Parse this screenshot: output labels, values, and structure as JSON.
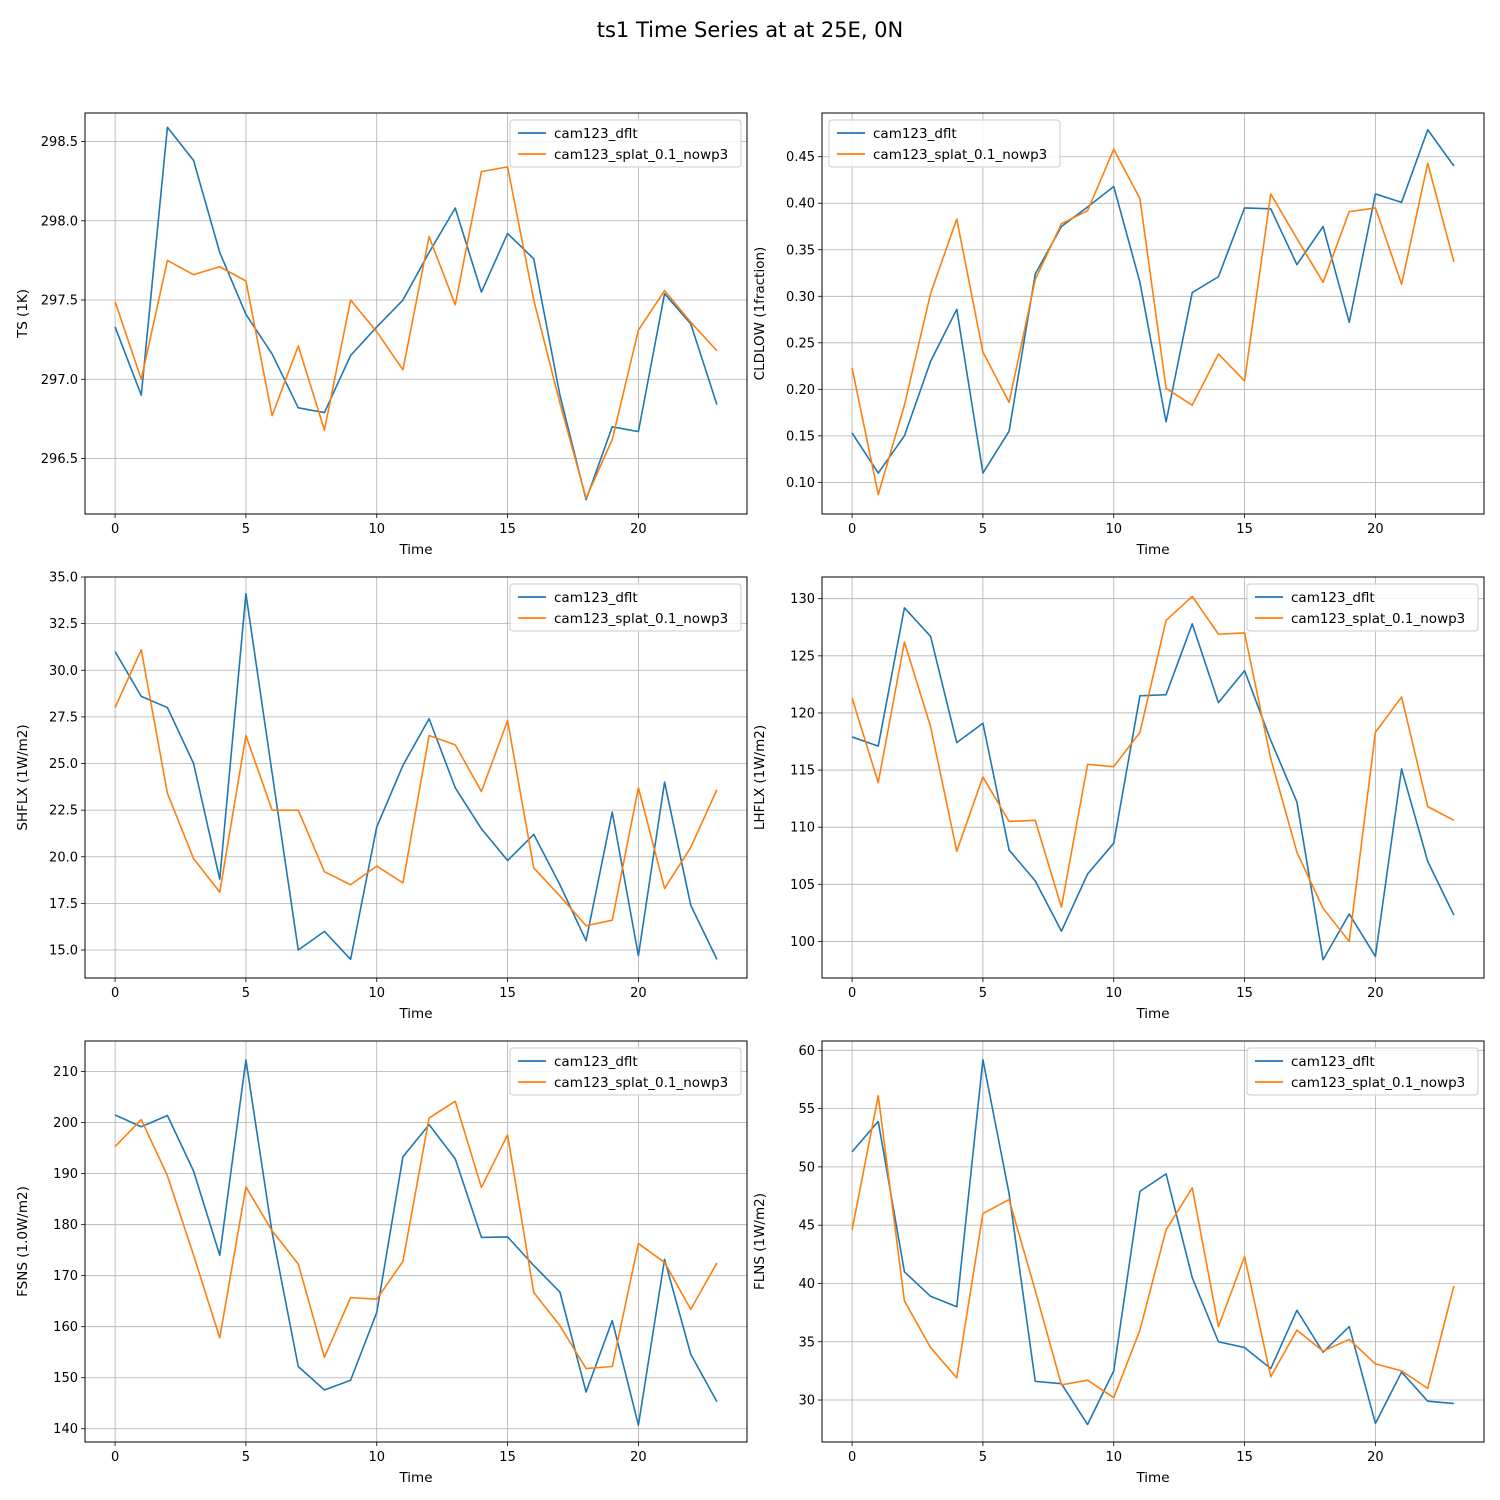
{
  "figure": {
    "title": "ts1 Time Series at at 25E, 0N"
  },
  "colors": {
    "cam123_dflt": "#1f77b4",
    "cam123_splat_0.1_nowp3": "#ff7f0e"
  },
  "chart_data": [
    {
      "type": "line",
      "id": "ts",
      "xlabel": "Time",
      "ylabel": "TS (1K)",
      "xlim": [
        -1.15,
        24.15
      ],
      "ylim": [
        296.15,
        298.68
      ],
      "xticks": [
        0,
        5,
        10,
        15,
        20
      ],
      "yticks": [
        296.5,
        297.0,
        297.5,
        298.0,
        298.5
      ],
      "ytick_labels": [
        "296.5",
        "297.0",
        "297.5",
        "298.0",
        "298.5"
      ],
      "grid": true,
      "legend": "top-right",
      "x": [
        0,
        1,
        2,
        3,
        4,
        5,
        6,
        7,
        8,
        9,
        10,
        11,
        12,
        13,
        14,
        15,
        16,
        17,
        18,
        19,
        20,
        21,
        22,
        23
      ],
      "series": [
        {
          "name": "cam123_dflt",
          "values": [
            297.33,
            296.9,
            298.59,
            298.38,
            297.8,
            297.41,
            297.16,
            296.82,
            296.79,
            297.15,
            297.33,
            297.5,
            297.8,
            298.08,
            297.55,
            297.92,
            297.76,
            296.9,
            296.24,
            296.7,
            296.67,
            297.54,
            297.35,
            296.84
          ]
        },
        {
          "name": "cam123_splat_0.1_nowp3",
          "values": [
            297.49,
            297.0,
            297.75,
            297.66,
            297.71,
            297.62,
            296.77,
            297.21,
            296.68,
            297.5,
            297.3,
            297.06,
            297.9,
            297.47,
            298.31,
            298.34,
            297.5,
            296.85,
            296.25,
            296.62,
            297.31,
            297.56,
            297.36,
            297.18
          ]
        }
      ]
    },
    {
      "type": "line",
      "id": "cldlow",
      "xlabel": "Time",
      "ylabel": "CLDLOW (1fraction)",
      "xlim": [
        -1.15,
        24.15
      ],
      "ylim": [
        0.066,
        0.497
      ],
      "xticks": [
        0,
        5,
        10,
        15,
        20
      ],
      "yticks": [
        0.1,
        0.15,
        0.2,
        0.25,
        0.3,
        0.35,
        0.4,
        0.45
      ],
      "ytick_labels": [
        "0.10",
        "0.15",
        "0.20",
        "0.25",
        "0.30",
        "0.35",
        "0.40",
        "0.45"
      ],
      "grid": true,
      "legend": "top-left",
      "x": [
        0,
        1,
        2,
        3,
        4,
        5,
        6,
        7,
        8,
        9,
        10,
        11,
        12,
        13,
        14,
        15,
        16,
        17,
        18,
        19,
        20,
        21,
        22,
        23
      ],
      "series": [
        {
          "name": "cam123_dflt",
          "values": [
            0.153,
            0.11,
            0.15,
            0.23,
            0.286,
            0.11,
            0.155,
            0.324,
            0.375,
            0.396,
            0.418,
            0.315,
            0.165,
            0.304,
            0.321,
            0.395,
            0.394,
            0.334,
            0.375,
            0.272,
            0.41,
            0.401,
            0.479,
            0.44
          ]
        },
        {
          "name": "cam123_splat_0.1_nowp3",
          "values": [
            0.223,
            0.087,
            0.183,
            0.303,
            0.383,
            0.24,
            0.186,
            0.318,
            0.378,
            0.392,
            0.458,
            0.405,
            0.201,
            0.183,
            0.238,
            0.209,
            0.41,
            0.362,
            0.315,
            0.391,
            0.395,
            0.313,
            0.443,
            0.337
          ]
        }
      ]
    },
    {
      "type": "line",
      "id": "shflx",
      "xlabel": "Time",
      "ylabel": "SHFLX (1W/m2)",
      "xlim": [
        -1.15,
        24.15
      ],
      "ylim": [
        13.5,
        35.0
      ],
      "xticks": [
        0,
        5,
        10,
        15,
        20
      ],
      "yticks": [
        15.0,
        17.5,
        20.0,
        22.5,
        25.0,
        27.5,
        30.0,
        32.5,
        35.0
      ],
      "ytick_labels": [
        "15.0",
        "17.5",
        "20.0",
        "22.5",
        "25.0",
        "27.5",
        "30.0",
        "32.5",
        "35.0"
      ],
      "grid": true,
      "legend": "top-right",
      "x": [
        0,
        1,
        2,
        3,
        4,
        5,
        6,
        7,
        8,
        9,
        10,
        11,
        12,
        13,
        14,
        15,
        16,
        17,
        18,
        19,
        20,
        21,
        22,
        23
      ],
      "series": [
        {
          "name": "cam123_dflt",
          "values": [
            31.0,
            28.6,
            28.0,
            25.0,
            18.8,
            34.1,
            24.5,
            15.0,
            16.0,
            14.5,
            21.6,
            24.9,
            27.4,
            23.7,
            21.5,
            19.8,
            21.2,
            18.5,
            15.5,
            22.4,
            14.7,
            24.0,
            17.4,
            14.5
          ]
        },
        {
          "name": "cam123_splat_0.1_nowp3",
          "values": [
            28.0,
            31.1,
            23.4,
            19.9,
            18.1,
            26.5,
            22.5,
            22.5,
            19.2,
            18.5,
            19.5,
            18.6,
            26.5,
            26.0,
            23.5,
            27.3,
            19.4,
            17.9,
            16.3,
            16.6,
            23.7,
            18.3,
            20.5,
            23.6
          ]
        }
      ]
    },
    {
      "type": "line",
      "id": "lhflx",
      "xlabel": "Time",
      "ylabel": "LHFLX (1W/m2)",
      "xlim": [
        -1.15,
        24.15
      ],
      "ylim": [
        96.8,
        131.9
      ],
      "xticks": [
        0,
        5,
        10,
        15,
        20
      ],
      "yticks": [
        100,
        105,
        110,
        115,
        120,
        125,
        130
      ],
      "ytick_labels": [
        "100",
        "105",
        "110",
        "115",
        "120",
        "125",
        "130"
      ],
      "grid": true,
      "legend": "top-right",
      "x": [
        0,
        1,
        2,
        3,
        4,
        5,
        6,
        7,
        8,
        9,
        10,
        11,
        12,
        13,
        14,
        15,
        16,
        17,
        18,
        19,
        20,
        21,
        22,
        23
      ],
      "series": [
        {
          "name": "cam123_dflt",
          "values": [
            117.9,
            117.1,
            129.2,
            126.7,
            117.4,
            119.1,
            108.0,
            105.3,
            100.9,
            105.9,
            108.6,
            121.5,
            121.6,
            127.8,
            120.9,
            123.7,
            117.6,
            112.2,
            98.4,
            102.4,
            98.7,
            115.1,
            107.0,
            102.3
          ]
        },
        {
          "name": "cam123_splat_0.1_nowp3",
          "values": [
            121.3,
            113.9,
            126.2,
            118.8,
            107.9,
            114.4,
            110.5,
            110.6,
            103.0,
            115.5,
            115.3,
            118.3,
            128.1,
            130.2,
            126.9,
            127.0,
            116.0,
            107.8,
            102.9,
            100.0,
            118.3,
            121.4,
            111.8,
            110.6
          ]
        }
      ]
    },
    {
      "type": "line",
      "id": "fsns",
      "xlabel": "Time",
      "ylabel": "FSNS (1.0W/m2)",
      "xlim": [
        -1.15,
        24.15
      ],
      "ylim": [
        137.4,
        216.0
      ],
      "xticks": [
        0,
        5,
        10,
        15,
        20
      ],
      "yticks": [
        140,
        150,
        160,
        170,
        180,
        190,
        200,
        210
      ],
      "ytick_labels": [
        "140",
        "150",
        "160",
        "170",
        "180",
        "190",
        "200",
        "210"
      ],
      "grid": true,
      "legend": "top-right",
      "x": [
        0,
        1,
        2,
        3,
        4,
        5,
        6,
        7,
        8,
        9,
        10,
        11,
        12,
        13,
        14,
        15,
        16,
        17,
        18,
        19,
        20,
        21,
        22,
        23
      ],
      "series": [
        {
          "name": "cam123_dflt",
          "values": [
            201.5,
            199.2,
            201.4,
            190.5,
            174.0,
            212.3,
            178.5,
            152.2,
            147.6,
            149.5,
            162.8,
            193.3,
            199.6,
            192.9,
            177.5,
            177.6,
            172.0,
            166.8,
            147.2,
            161.2,
            140.7,
            173.2,
            154.6,
            145.3
          ]
        },
        {
          "name": "cam123_splat_0.1_nowp3",
          "values": [
            195.3,
            200.6,
            189.6,
            174.0,
            157.8,
            187.4,
            178.8,
            172.3,
            154.0,
            165.7,
            165.4,
            172.8,
            200.9,
            204.2,
            187.3,
            197.6,
            166.7,
            160.2,
            151.8,
            152.2,
            176.3,
            172.6,
            163.4,
            172.5
          ]
        }
      ]
    },
    {
      "type": "line",
      "id": "flns",
      "xlabel": "Time",
      "ylabel": "FLNS (1W/m2)",
      "xlim": [
        -1.15,
        24.15
      ],
      "ylim": [
        26.4,
        60.8
      ],
      "xticks": [
        0,
        5,
        10,
        15,
        20
      ],
      "yticks": [
        30,
        35,
        40,
        45,
        50,
        55,
        60
      ],
      "ytick_labels": [
        "30",
        "35",
        "40",
        "45",
        "50",
        "55",
        "60"
      ],
      "grid": true,
      "legend": "top-right",
      "x": [
        0,
        1,
        2,
        3,
        4,
        5,
        6,
        7,
        8,
        9,
        10,
        11,
        12,
        13,
        14,
        15,
        16,
        17,
        18,
        19,
        20,
        21,
        22,
        23
      ],
      "series": [
        {
          "name": "cam123_dflt",
          "values": [
            51.3,
            53.9,
            41.0,
            38.9,
            38.0,
            59.2,
            47.7,
            31.6,
            31.4,
            27.9,
            32.5,
            47.9,
            49.4,
            40.5,
            35.0,
            34.5,
            32.7,
            37.7,
            34.1,
            36.3,
            28.0,
            32.4,
            29.9,
            29.7
          ]
        },
        {
          "name": "cam123_splat_0.1_nowp3",
          "values": [
            44.6,
            56.1,
            38.5,
            34.5,
            31.9,
            46.0,
            47.2,
            39.4,
            31.3,
            31.7,
            30.2,
            36.0,
            44.6,
            48.2,
            36.3,
            42.3,
            32.0,
            36.0,
            34.2,
            35.2,
            33.1,
            32.5,
            31.0,
            39.8
          ]
        }
      ]
    }
  ]
}
